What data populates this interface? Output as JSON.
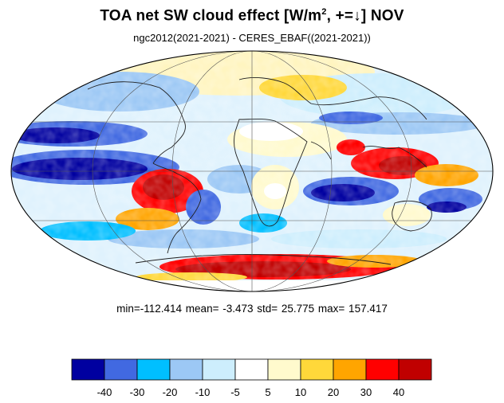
{
  "title": {
    "main": "TOA net SW cloud effect [W/m",
    "sup": "2",
    "tail": ", +=↓]  NOV"
  },
  "subtitle": "ngc2012(2021-2021) - CERES_EBAF((2021-2021))",
  "stats": "min=-112.414   mean=  -3.473   std=  25.775   max= 157.417",
  "colorbar": {
    "colors": [
      "#0000a0",
      "#4169e1",
      "#00bfff",
      "#9cc8f5",
      "#cdeefd",
      "#ffffff",
      "#fffacd",
      "#ffd83a",
      "#ffa500",
      "#ff0000",
      "#c00000"
    ],
    "labels": [
      "-40",
      "-30",
      "-20",
      "-10",
      "-5",
      "5",
      "10",
      "20",
      "30",
      "40"
    ]
  }
}
